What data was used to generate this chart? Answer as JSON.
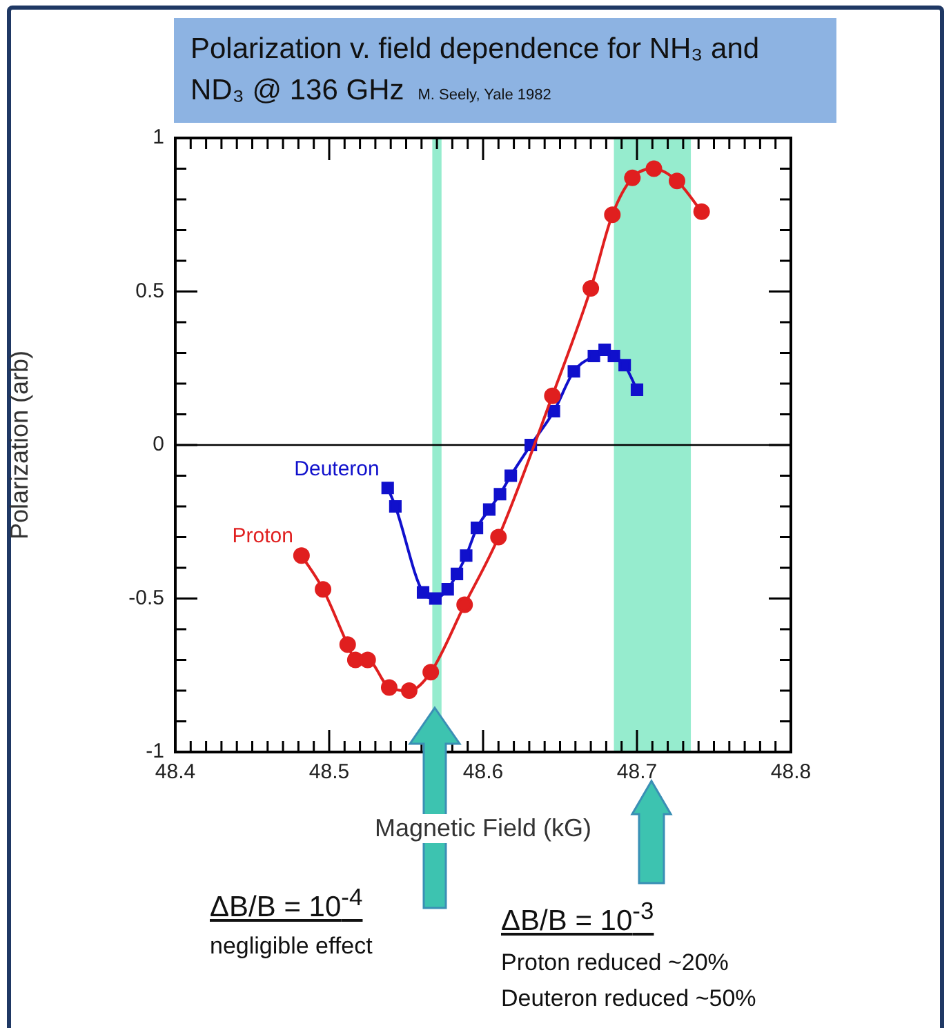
{
  "chart_data": {
    "type": "line",
    "title": "Polarization v. field dependence for NH₃ and ND₃ @ 136 GHz",
    "xlabel": "Magnetic Field (kG)",
    "ylabel": "Polarization (arb)",
    "xlim": [
      48.4,
      48.8
    ],
    "ylim": [
      -1,
      1
    ],
    "xticks": [
      48.4,
      {
        "value": 48.41,
        "label": null
      },
      {
        "value": 48.42,
        "label": null
      },
      {
        "value": 48.43,
        "label": null
      },
      {
        "value": 48.44,
        "label": null
      },
      {
        "value": 48.45,
        "label": null
      },
      {
        "value": 48.46,
        "label": null
      },
      {
        "value": 48.47,
        "label": null
      },
      {
        "value": 48.48,
        "label": null
      },
      {
        "value": 48.49,
        "label": null
      },
      48.5,
      {
        "value": 48.51,
        "label": null
      },
      {
        "value": 48.52,
        "label": null
      },
      {
        "value": 48.53,
        "label": null
      },
      {
        "value": 48.54,
        "label": null
      },
      {
        "value": 48.55,
        "label": null
      },
      {
        "value": 48.56,
        "label": null
      },
      {
        "value": 48.57,
        "label": null
      },
      {
        "value": 48.58,
        "label": null
      },
      {
        "value": 48.59,
        "label": null
      },
      48.6,
      {
        "value": 48.61,
        "label": null
      },
      {
        "value": 48.62,
        "label": null
      },
      {
        "value": 48.63,
        "label": null
      },
      {
        "value": 48.64,
        "label": null
      },
      {
        "value": 48.65,
        "label": null
      },
      {
        "value": 48.66,
        "label": null
      },
      {
        "value": 48.67,
        "label": null
      },
      {
        "value": 48.68,
        "label": null
      },
      {
        "value": 48.69,
        "label": null
      },
      48.7,
      {
        "value": 48.71,
        "label": null
      },
      {
        "value": 48.72,
        "label": null
      },
      {
        "value": 48.73,
        "label": null
      },
      {
        "value": 48.74,
        "label": null
      },
      {
        "value": 48.75,
        "label": null
      },
      {
        "value": 48.76,
        "label": null
      },
      {
        "value": 48.77,
        "label": null
      },
      {
        "value": 48.78,
        "label": null
      },
      {
        "value": 48.79,
        "label": null
      },
      48.8
    ],
    "yticks": [
      -1,
      {
        "value": -0.9,
        "label": null
      },
      {
        "value": -0.8,
        "label": null
      },
      {
        "value": -0.7,
        "label": null
      },
      {
        "value": -0.6,
        "label": null
      },
      -0.5,
      {
        "value": -0.4,
        "label": null
      },
      {
        "value": -0.3,
        "label": null
      },
      {
        "value": -0.2,
        "label": null
      },
      {
        "value": -0.1,
        "label": null
      },
      0,
      {
        "value": 0.1,
        "label": null
      },
      {
        "value": 0.2,
        "label": null
      },
      {
        "value": 0.3,
        "label": null
      },
      {
        "value": 0.4,
        "label": null
      },
      0.5,
      {
        "value": 0.6,
        "label": null
      },
      {
        "value": 0.7,
        "label": null
      },
      {
        "value": 0.8,
        "label": null
      },
      {
        "value": 0.9,
        "label": null
      },
      1
    ],
    "grid": false,
    "legend": false,
    "series": [
      {
        "name": "Proton",
        "color": "#e01f1f",
        "marker": "circle",
        "x": [
          48.482,
          48.496,
          48.512,
          48.517,
          48.525,
          48.539,
          48.552,
          48.566,
          48.588,
          48.61,
          48.645,
          48.67,
          48.684,
          48.697,
          48.711,
          48.726,
          48.742
        ],
        "values": [
          -0.36,
          -0.47,
          -0.65,
          -0.7,
          -0.7,
          -0.79,
          -0.8,
          -0.74,
          -0.52,
          -0.3,
          0.16,
          0.51,
          0.75,
          0.87,
          0.9,
          0.86,
          0.76
        ]
      },
      {
        "name": "Deuteron",
        "color": "#1010cc",
        "marker": "square",
        "x": [
          48.538,
          48.543,
          48.561,
          48.569,
          48.577,
          48.583,
          48.589,
          48.596,
          48.604,
          48.611,
          48.618,
          48.631,
          48.646,
          48.659,
          48.672,
          48.679,
          48.685,
          48.692,
          48.7
        ],
        "values": [
          -0.14,
          -0.2,
          -0.48,
          -0.5,
          -0.47,
          -0.42,
          -0.36,
          -0.27,
          -0.21,
          -0.16,
          -0.1,
          0,
          0.11,
          0.24,
          0.29,
          0.31,
          0.29,
          0.26,
          0.18
        ]
      }
    ],
    "ref_lines": [
      {
        "axis": "y",
        "value": 0,
        "color": "#000000"
      }
    ],
    "bands": [
      {
        "axis": "x",
        "from": 48.567,
        "to": 48.573,
        "color": "#96ecce"
      },
      {
        "axis": "x",
        "from": 48.685,
        "to": 48.735,
        "color": "#96ecce"
      }
    ],
    "annotations": [
      "M. Seely, Yale 1982",
      "ΔB/B = 10$^{-4}$",
      "negligible effect",
      "ΔB/B = 10$^{-3}$",
      "Proton reduced ~20%",
      "Deuteron reduced ~50%"
    ]
  }
}
